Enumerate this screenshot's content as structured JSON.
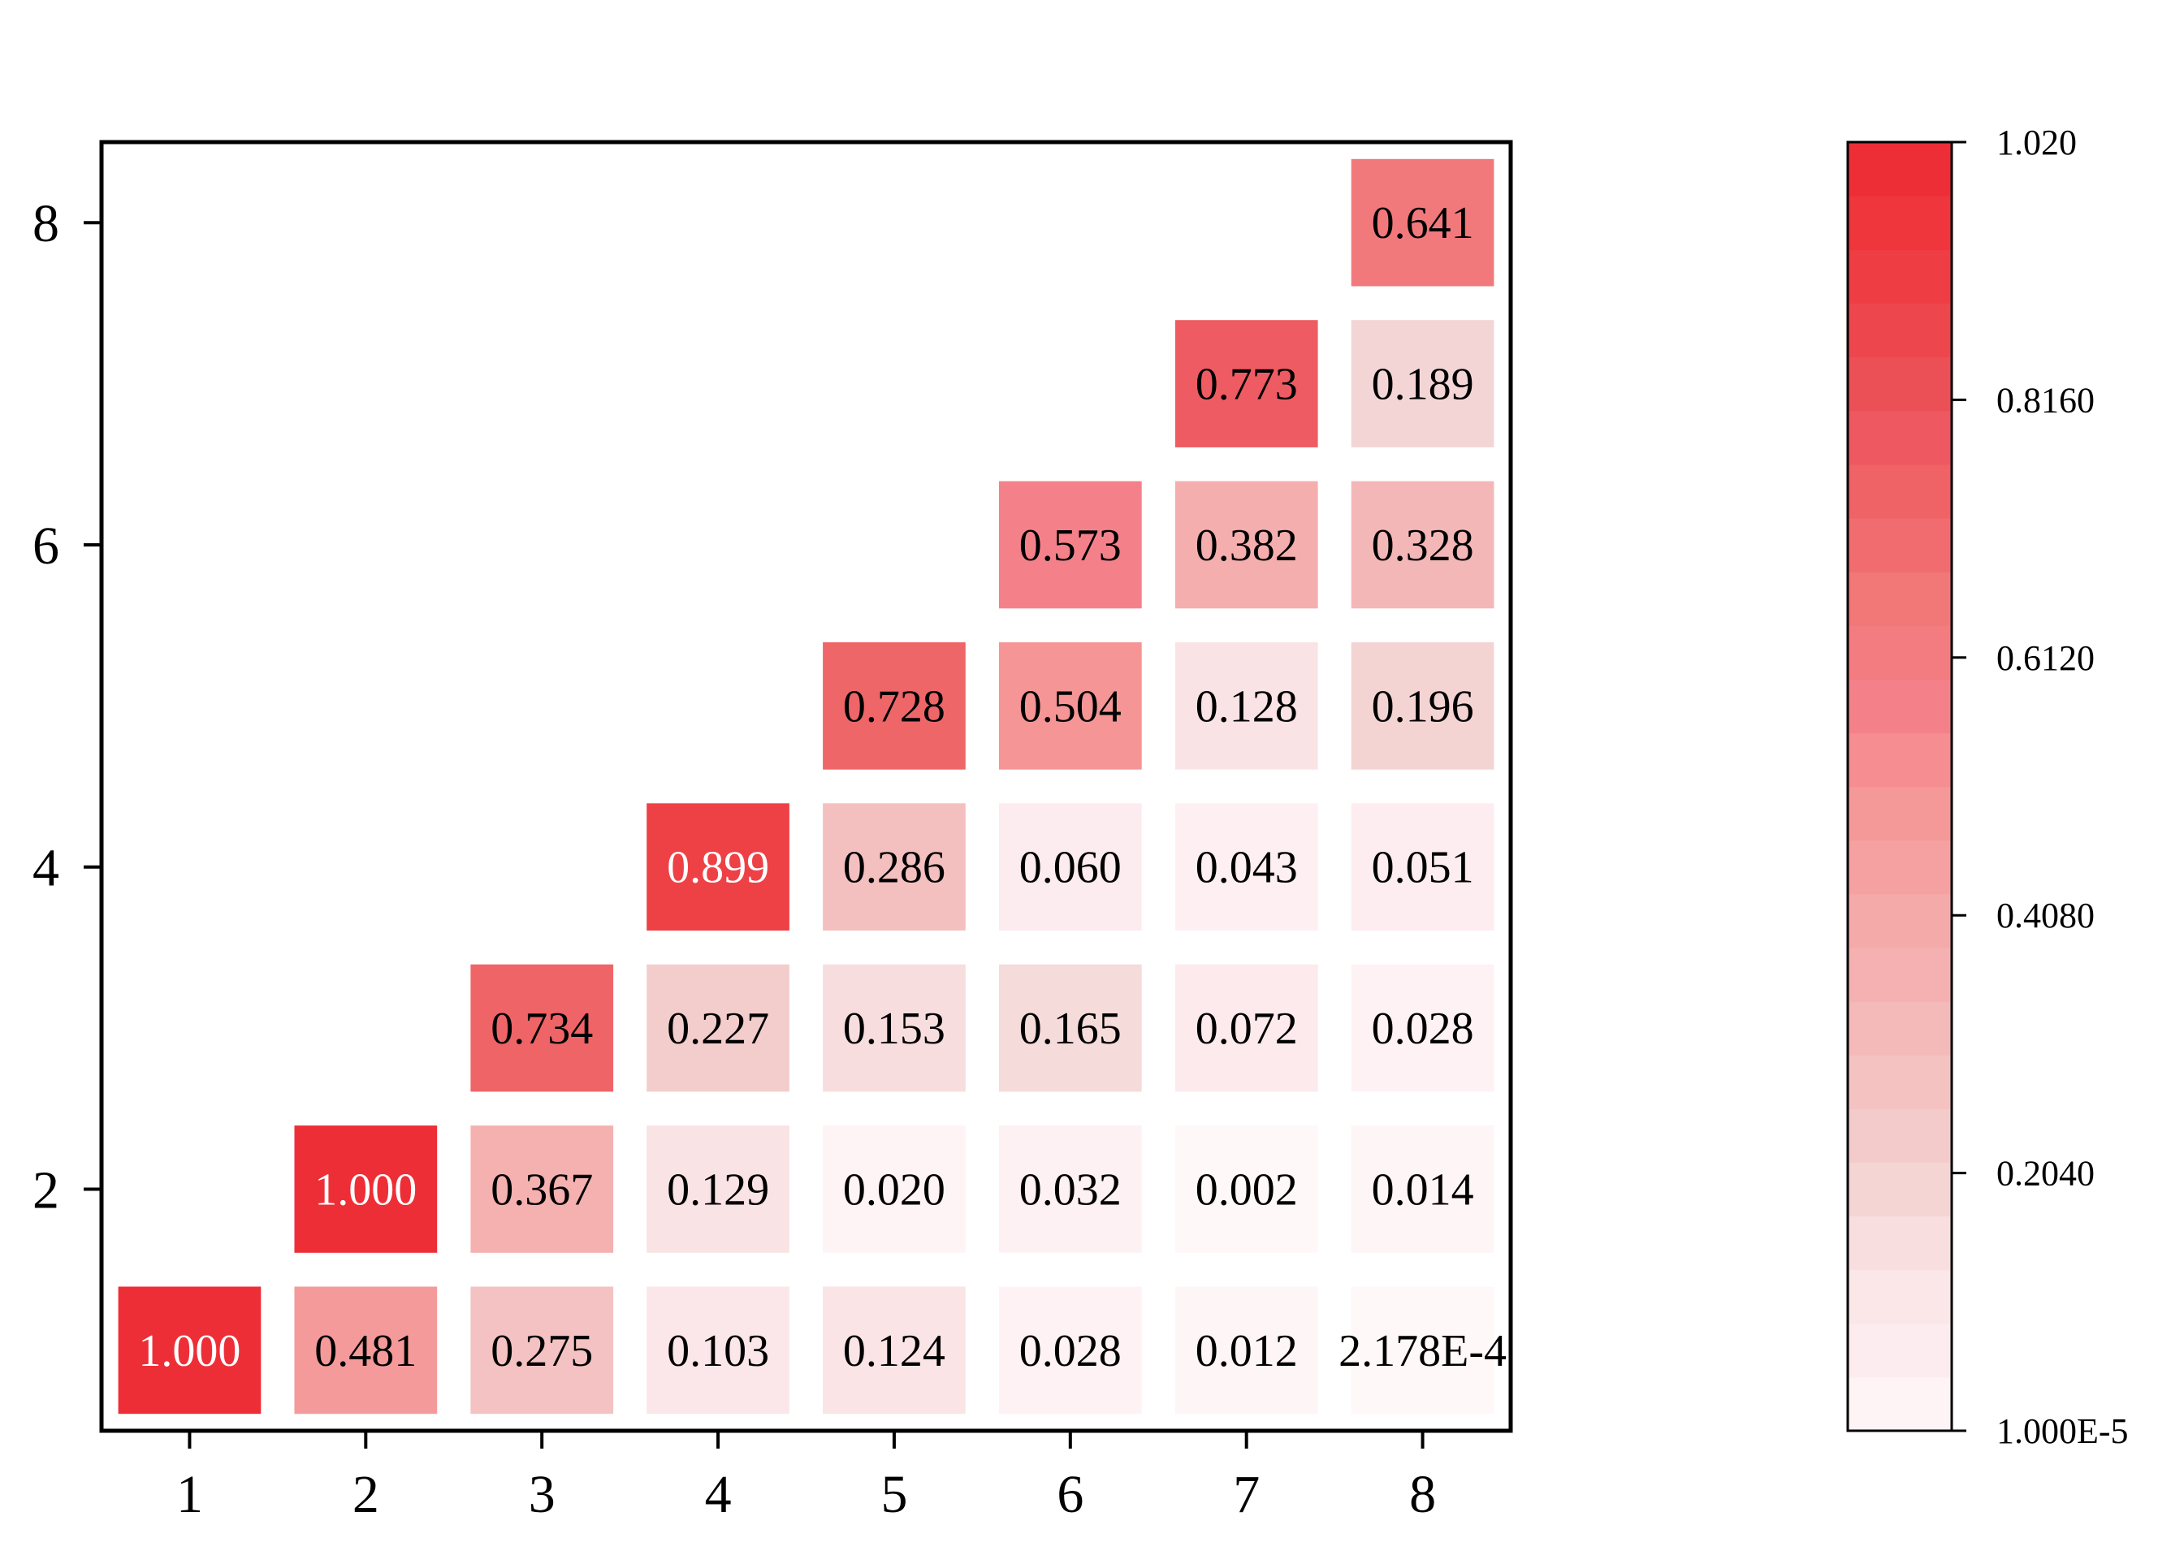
{
  "chart_data": {
    "type": "heatmap",
    "title": "",
    "xlabel": "",
    "ylabel": "",
    "x_categories": [
      "1",
      "2",
      "3",
      "4",
      "5",
      "6",
      "7",
      "8"
    ],
    "y_categories": [
      "1",
      "2",
      "3",
      "4",
      "5",
      "6",
      "7",
      "8"
    ],
    "y_tick_labels": [
      "2",
      "4",
      "6",
      "8"
    ],
    "xlim": [
      0.5,
      8.5
    ],
    "ylim": [
      0.5,
      8.5
    ],
    "grid": false,
    "cells": [
      {
        "x": 1,
        "y": 1,
        "value": 1.0,
        "label": "1.000"
      },
      {
        "x": 2,
        "y": 1,
        "value": 0.481,
        "label": "0.481"
      },
      {
        "x": 3,
        "y": 1,
        "value": 0.275,
        "label": "0.275"
      },
      {
        "x": 4,
        "y": 1,
        "value": 0.103,
        "label": "0.103"
      },
      {
        "x": 5,
        "y": 1,
        "value": 0.124,
        "label": "0.124"
      },
      {
        "x": 6,
        "y": 1,
        "value": 0.028,
        "label": "0.028"
      },
      {
        "x": 7,
        "y": 1,
        "value": 0.012,
        "label": "0.012"
      },
      {
        "x": 8,
        "y": 1,
        "value": 0.0002178,
        "label": "2.178E-4"
      },
      {
        "x": 2,
        "y": 2,
        "value": 1.0,
        "label": "1.000"
      },
      {
        "x": 3,
        "y": 2,
        "value": 0.367,
        "label": "0.367"
      },
      {
        "x": 4,
        "y": 2,
        "value": 0.129,
        "label": "0.129"
      },
      {
        "x": 5,
        "y": 2,
        "value": 0.02,
        "label": "0.020"
      },
      {
        "x": 6,
        "y": 2,
        "value": 0.032,
        "label": "0.032"
      },
      {
        "x": 7,
        "y": 2,
        "value": 0.002,
        "label": "0.002"
      },
      {
        "x": 8,
        "y": 2,
        "value": 0.014,
        "label": "0.014"
      },
      {
        "x": 3,
        "y": 3,
        "value": 0.734,
        "label": "0.734"
      },
      {
        "x": 4,
        "y": 3,
        "value": 0.227,
        "label": "0.227"
      },
      {
        "x": 5,
        "y": 3,
        "value": 0.153,
        "label": "0.153"
      },
      {
        "x": 6,
        "y": 3,
        "value": 0.165,
        "label": "0.165"
      },
      {
        "x": 7,
        "y": 3,
        "value": 0.072,
        "label": "0.072"
      },
      {
        "x": 8,
        "y": 3,
        "value": 0.028,
        "label": "0.028"
      },
      {
        "x": 4,
        "y": 4,
        "value": 0.899,
        "label": "0.899"
      },
      {
        "x": 5,
        "y": 4,
        "value": 0.286,
        "label": "0.286"
      },
      {
        "x": 6,
        "y": 4,
        "value": 0.06,
        "label": "0.060"
      },
      {
        "x": 7,
        "y": 4,
        "value": 0.043,
        "label": "0.043"
      },
      {
        "x": 8,
        "y": 4,
        "value": 0.051,
        "label": "0.051"
      },
      {
        "x": 5,
        "y": 5,
        "value": 0.728,
        "label": "0.728"
      },
      {
        "x": 6,
        "y": 5,
        "value": 0.504,
        "label": "0.504"
      },
      {
        "x": 7,
        "y": 5,
        "value": 0.128,
        "label": "0.128"
      },
      {
        "x": 8,
        "y": 5,
        "value": 0.196,
        "label": "0.196"
      },
      {
        "x": 6,
        "y": 6,
        "value": 0.573,
        "label": "0.573"
      },
      {
        "x": 7,
        "y": 6,
        "value": 0.382,
        "label": "0.382"
      },
      {
        "x": 8,
        "y": 6,
        "value": 0.328,
        "label": "0.328"
      },
      {
        "x": 7,
        "y": 7,
        "value": 0.773,
        "label": "0.773"
      },
      {
        "x": 8,
        "y": 7,
        "value": 0.189,
        "label": "0.189"
      },
      {
        "x": 8,
        "y": 8,
        "value": 0.641,
        "label": "0.641"
      }
    ],
    "colorbar": {
      "min": 1e-05,
      "max": 1.02,
      "tick_values": [
        1.02,
        0.816,
        0.612,
        0.408,
        0.204,
        1e-05
      ],
      "tick_labels": [
        "1.020",
        "0.8160",
        "0.6120",
        "0.4080",
        "0.2040",
        "1.000E-5"
      ],
      "placement": "right",
      "bands": 24,
      "stops": [
        {
          "t": 0.0,
          "color": "#fff8f8"
        },
        {
          "t": 0.06,
          "color": "#fcebef"
        },
        {
          "t": 0.12,
          "color": "#fae4e6"
        },
        {
          "t": 0.2,
          "color": "#f3d2d1"
        },
        {
          "t": 0.3,
          "color": "#f4bbbb"
        },
        {
          "t": 0.4,
          "color": "#f5a9a9"
        },
        {
          "t": 0.5,
          "color": "#f59494"
        },
        {
          "t": 0.56,
          "color": "#f4818a"
        },
        {
          "t": 0.64,
          "color": "#f27878"
        },
        {
          "t": 0.72,
          "color": "#ef6467"
        },
        {
          "t": 0.76,
          "color": "#ee5a62"
        },
        {
          "t": 0.82,
          "color": "#ec4f55"
        },
        {
          "t": 0.9,
          "color": "#ee3d42"
        },
        {
          "t": 1.0,
          "color": "#ee2a33"
        }
      ]
    },
    "dark_label_color": "#000000",
    "light_label_color": "#ffffff",
    "light_label_threshold": 0.85
  }
}
